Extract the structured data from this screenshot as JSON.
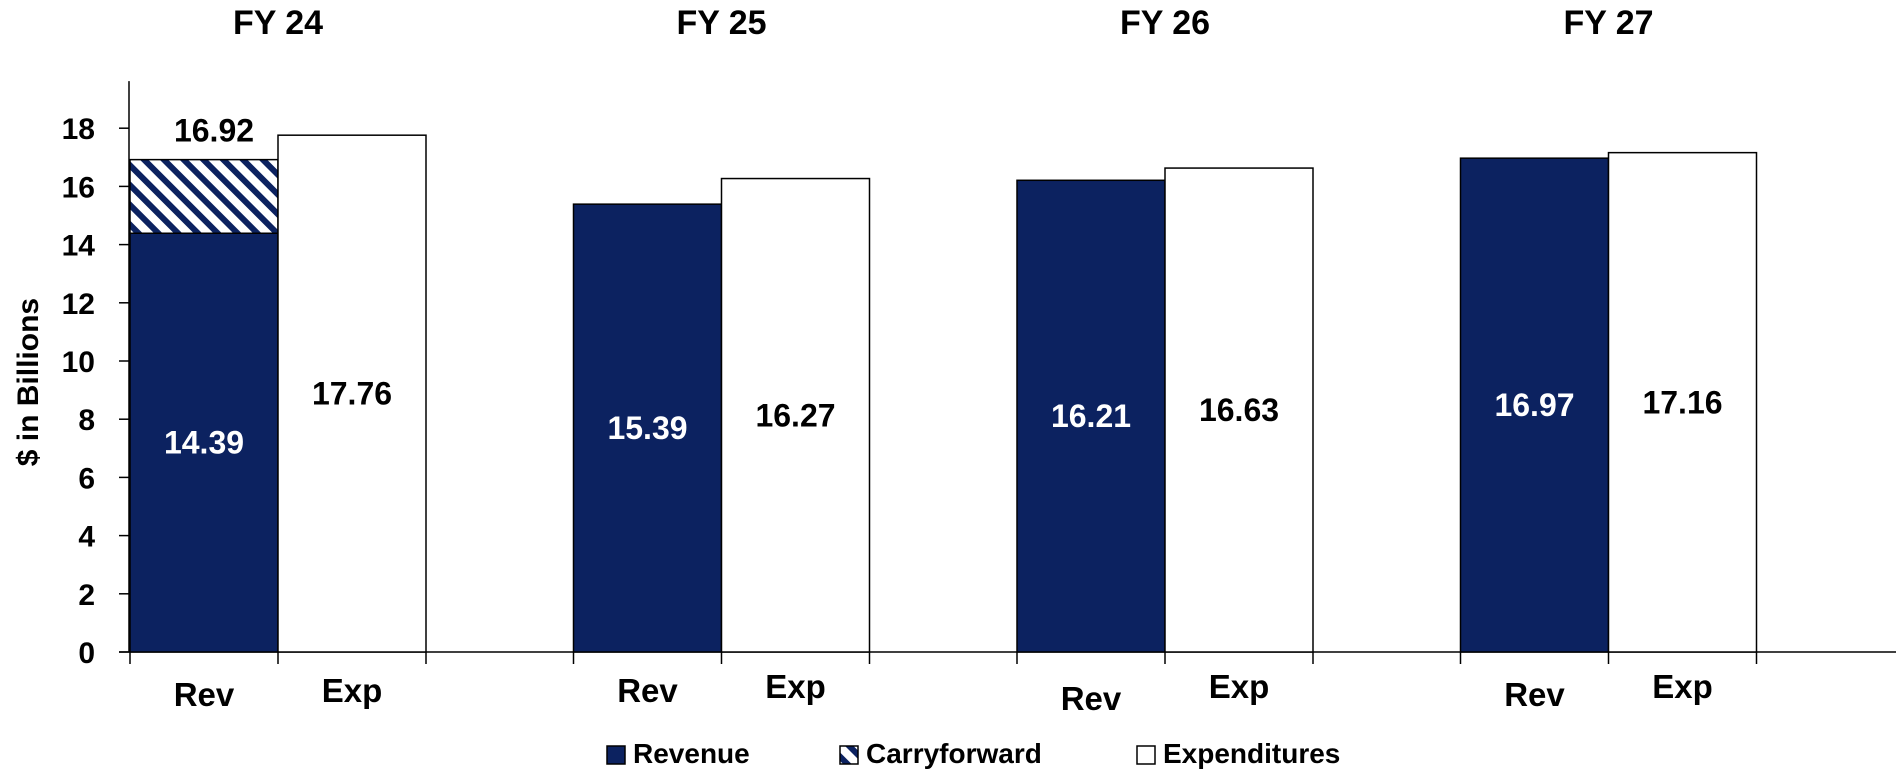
{
  "chart_data": {
    "type": "bar",
    "stacked": true,
    "ylabel": "$ in Billions",
    "ylim": [
      0,
      19
    ],
    "yticks": [
      0,
      2,
      4,
      6,
      8,
      10,
      12,
      14,
      16,
      18
    ],
    "legend_position": "bottom",
    "colors": {
      "Revenue": "#0c2260",
      "Carryforward": "#0c2260",
      "Expenditures": "#ffffff"
    },
    "groups": [
      {
        "label": "FY 24",
        "bars": [
          {
            "category": "Rev",
            "segments": [
              {
                "series": "Revenue",
                "value": 14.39,
                "label": "14.39"
              },
              {
                "series": "Carryforward",
                "value": 2.53
              }
            ],
            "total_label": "16.92"
          },
          {
            "category": "Exp",
            "segments": [
              {
                "series": "Expenditures",
                "value": 17.76,
                "label": "17.76"
              }
            ]
          }
        ]
      },
      {
        "label": "FY 25",
        "bars": [
          {
            "category": "Rev",
            "segments": [
              {
                "series": "Revenue",
                "value": 15.39,
                "label": "15.39"
              }
            ]
          },
          {
            "category": "Exp",
            "segments": [
              {
                "series": "Expenditures",
                "value": 16.27,
                "label": "16.27"
              }
            ]
          }
        ]
      },
      {
        "label": "FY 26",
        "bars": [
          {
            "category": "Rev",
            "segments": [
              {
                "series": "Revenue",
                "value": 16.21,
                "label": "16.21"
              }
            ]
          },
          {
            "category": "Exp",
            "segments": [
              {
                "series": "Expenditures",
                "value": 16.63,
                "label": "16.63"
              }
            ]
          }
        ]
      },
      {
        "label": "FY 27",
        "bars": [
          {
            "category": "Rev",
            "segments": [
              {
                "series": "Revenue",
                "value": 16.97,
                "label": "16.97"
              }
            ]
          },
          {
            "category": "Exp",
            "segments": [
              {
                "series": "Expenditures",
                "value": 17.16,
                "label": "17.16"
              }
            ]
          }
        ]
      }
    ],
    "legend": [
      "Revenue",
      "Carryforward",
      "Expenditures"
    ]
  }
}
